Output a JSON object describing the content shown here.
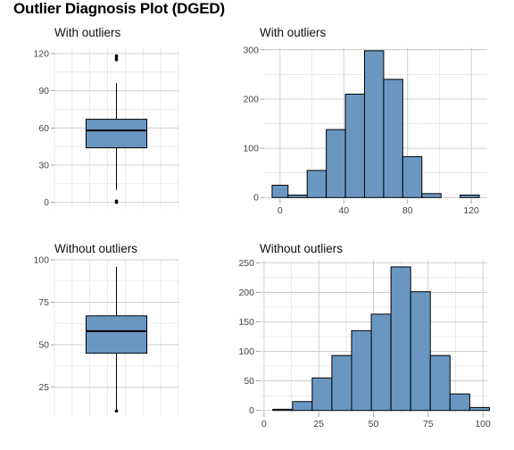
{
  "page": {
    "title": "Outlier Diagnosis Plot (DGED)"
  },
  "colors": {
    "fill": "#6a97c2",
    "stroke": "#000000",
    "grid": "#c8c8c8",
    "background": "#ffffff"
  },
  "chart_data": [
    {
      "id": "box_with",
      "type": "boxplot",
      "title": "With outliers",
      "ylim": [
        -6,
        125
      ],
      "yticks": [
        0,
        30,
        60,
        90,
        120
      ],
      "box": {
        "q1": 44,
        "median": 58,
        "q3": 67,
        "whisker_low": 10,
        "whisker_high": 96
      },
      "outliers": [
        0,
        1,
        115,
        116,
        118
      ]
    },
    {
      "id": "hist_with",
      "type": "histogram",
      "title": "With outliers",
      "xlim": [
        -10,
        130
      ],
      "xticks": [
        0,
        40,
        80,
        120
      ],
      "ylim": [
        -5,
        305
      ],
      "yticks": [
        0,
        100,
        200,
        300
      ],
      "bins": [
        {
          "x0": -5,
          "x1": 5,
          "count": 25
        },
        {
          "x0": 5,
          "x1": 17,
          "count": 5
        },
        {
          "x0": 17,
          "x1": 29,
          "count": 55
        },
        {
          "x0": 29,
          "x1": 41,
          "count": 138
        },
        {
          "x0": 41,
          "x1": 53,
          "count": 210
        },
        {
          "x0": 53,
          "x1": 65,
          "count": 298
        },
        {
          "x0": 65,
          "x1": 77,
          "count": 240
        },
        {
          "x0": 77,
          "x1": 89,
          "count": 83
        },
        {
          "x0": 89,
          "x1": 101,
          "count": 8
        },
        {
          "x0": 113,
          "x1": 125,
          "count": 5
        }
      ]
    },
    {
      "id": "box_without",
      "type": "boxplot",
      "title": "Without outliers",
      "ylim": [
        8,
        100
      ],
      "yticks": [
        25,
        50,
        75,
        100
      ],
      "box": {
        "q1": 45,
        "median": 58,
        "q3": 67,
        "whisker_low": 11,
        "whisker_high": 96
      },
      "outliers": [
        11
      ]
    },
    {
      "id": "hist_without",
      "type": "histogram",
      "title": "Without outliers",
      "xlim": [
        -2,
        102
      ],
      "xticks": [
        0,
        25,
        50,
        75,
        100
      ],
      "ylim": [
        -5,
        255
      ],
      "yticks": [
        0,
        50,
        100,
        150,
        200,
        250
      ],
      "bins": [
        {
          "x0": 4,
          "x1": 13,
          "count": 2
        },
        {
          "x0": 13,
          "x1": 22,
          "count": 15
        },
        {
          "x0": 22,
          "x1": 31,
          "count": 55
        },
        {
          "x0": 31,
          "x1": 40,
          "count": 93
        },
        {
          "x0": 40,
          "x1": 49,
          "count": 135
        },
        {
          "x0": 49,
          "x1": 58,
          "count": 163
        },
        {
          "x0": 58,
          "x1": 67,
          "count": 243
        },
        {
          "x0": 67,
          "x1": 76,
          "count": 201
        },
        {
          "x0": 76,
          "x1": 85,
          "count": 93
        },
        {
          "x0": 85,
          "x1": 94,
          "count": 28
        },
        {
          "x0": 94,
          "x1": 103,
          "count": 5
        }
      ]
    }
  ]
}
